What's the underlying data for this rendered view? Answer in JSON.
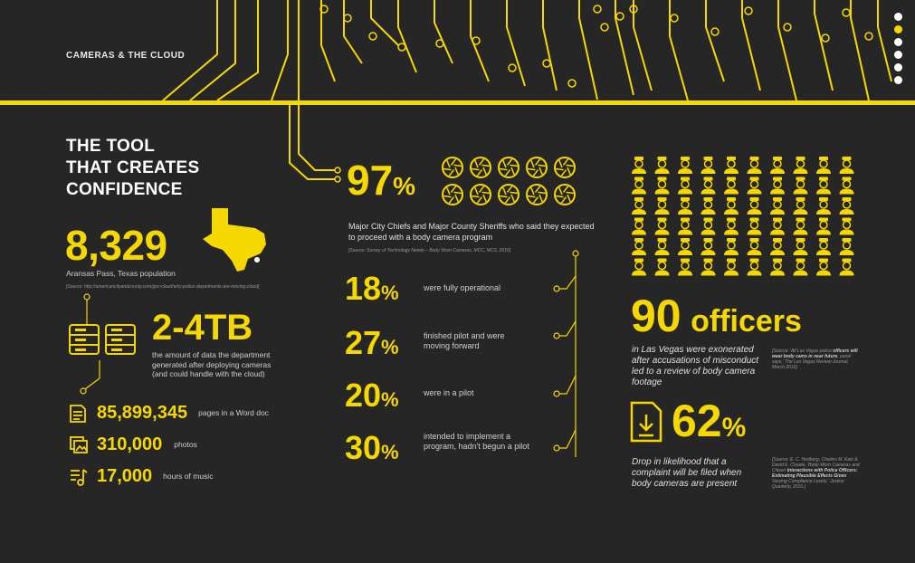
{
  "header": {
    "title": "CAMERAS & THE CLOUD"
  },
  "nav": {
    "dots": 6,
    "active_index": 1
  },
  "colors": {
    "accent": "#f5d800",
    "background": "#262626"
  },
  "left": {
    "title_lines": [
      "THE TOOL",
      "THAT CREATES",
      "CONFIDENCE"
    ],
    "population": {
      "value": "8,329",
      "label": "Aransas Pass, Texas population",
      "source": "[Source: http://americancityandcounty.com/gov-cloud/why-police-departments-are-moving-cloud]"
    },
    "data": {
      "value": "2-4TB",
      "label": "the amount of data the department generated after deploying cameras (and could handle with the cloud)"
    },
    "equivalents": [
      {
        "icon": "document-icon",
        "value": "85,899,345",
        "label": "pages in a Word doc"
      },
      {
        "icon": "photos-icon",
        "value": "310,000",
        "label": "photos"
      },
      {
        "icon": "music-icon",
        "value": "17,000",
        "label": "hours of music"
      }
    ]
  },
  "middle": {
    "headline": {
      "value": "97",
      "unit": "%",
      "label": "Major City Chiefs and Major County Sheriffs who said they expected to proceed with a body camera program",
      "source": "[Source: Survey of Technology Needs – Body Worn Cameras, MCC, MCS, 2016]"
    },
    "breakdown": [
      {
        "value": "18",
        "unit": "%",
        "label": "were fully operational"
      },
      {
        "value": "27",
        "unit": "%",
        "label": "finished pilot and were moving forward"
      },
      {
        "value": "20",
        "unit": "%",
        "label": "were in a pilot"
      },
      {
        "value": "30",
        "unit": "%",
        "label": "intended to implement a program, hadn't begun a pilot"
      }
    ]
  },
  "right": {
    "officers": {
      "value": "90",
      "unit": "officers",
      "label": "in Las Vegas were exonerated after accusations of misconduct led to a review of body camera footage",
      "source_plain": "[Source: 'All Las Vegas police ",
      "source_bold": "officers will wear body cams in near future",
      "source_tail": ", panel says,' The Las Vegas Review-Journal, March 2016]"
    },
    "complaints": {
      "value": "62",
      "unit": "%",
      "label": "Drop in likelihood that a complaint will be filed when body cameras are present",
      "source_plain": "[Source: E. C. Hedberg, Charles M. Katz & David E. Choate, 'Body-Worn Cameras and Citizen ",
      "source_bold": "Interactions with Police Officers: Estimating Plausible Effects Given",
      "source_tail": " Varying Compliance Levels,' Justice Quarterly, 2016.]"
    }
  }
}
